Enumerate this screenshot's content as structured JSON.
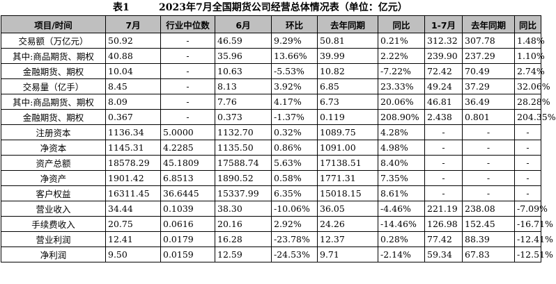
{
  "caption": {
    "label": "表1",
    "title": "2023年7月全国期货公司经营总体情况表（单位：亿元）"
  },
  "headers": [
    "项目/时间",
    "7月",
    "行业中位数",
    "6月",
    "环比",
    "去年同期",
    "同比",
    "1-7月",
    "去年同期",
    "同比"
  ],
  "rows": [
    [
      "交易额（万亿元）",
      "50.92",
      "-",
      "46.59",
      "9.29%",
      "50.81",
      "0.21%",
      "312.32",
      "307.78",
      "1.48%"
    ],
    [
      "其中:商品期货、期权",
      "40.88",
      "-",
      "35.96",
      "13.66%",
      "39.99",
      "2.22%",
      "239.90",
      "237.29",
      "1.10%"
    ],
    [
      "金融期货、期权",
      "10.04",
      "-",
      "10.63",
      "-5.53%",
      "10.82",
      "-7.22%",
      "72.42",
      "70.49",
      "2.74%"
    ],
    [
      "交易量（亿手）",
      "8.45",
      "-",
      "8.13",
      "3.92%",
      "6.85",
      "23.33%",
      "49.24",
      "37.29",
      "32.06%"
    ],
    [
      "其中:商品期货、期权",
      "8.09",
      "-",
      "7.76",
      "4.17%",
      "6.73",
      "20.06%",
      "46.81",
      "36.49",
      "28.28%"
    ],
    [
      "金融期货、期权",
      "0.367",
      "-",
      "0.373",
      "-1.37%",
      "0.119",
      "208.90%",
      "2.438",
      "0.801",
      "204.35%"
    ],
    [
      "注册资本",
      "1136.34",
      "5.0000",
      "1132.70",
      "0.32%",
      "1089.75",
      "4.28%",
      "-",
      "-",
      "-"
    ],
    [
      "净资本",
      "1145.31",
      "4.2285",
      "1135.50",
      "0.86%",
      "1091.00",
      "4.98%",
      "-",
      "-",
      "-"
    ],
    [
      "资产总额",
      "18578.29",
      "45.1809",
      "17588.74",
      "5.63%",
      "17138.51",
      "8.40%",
      "-",
      "-",
      "-"
    ],
    [
      "净资产",
      "1901.42",
      "6.8513",
      "1890.52",
      "0.58%",
      "1771.31",
      "7.35%",
      "-",
      "-",
      "-"
    ],
    [
      "客户权益",
      "16311.45",
      "36.6445",
      "15337.99",
      "6.35%",
      "15018.15",
      "8.61%",
      "-",
      "-",
      "-"
    ],
    [
      "营业收入",
      "34.44",
      "0.1039",
      "38.30",
      "-10.06%",
      "36.05",
      "-4.46%",
      "221.19",
      "238.08",
      "-7.09%"
    ],
    [
      "手续费收入",
      "20.75",
      "0.0616",
      "20.16",
      "2.92%",
      "24.26",
      "-14.46%",
      "126.98",
      "152.45",
      "-16.71%"
    ],
    [
      "营业利润",
      "12.41",
      "0.0179",
      "16.28",
      "-23.78%",
      "12.37",
      "0.28%",
      "77.42",
      "88.39",
      "-12.41%"
    ],
    [
      "净利润",
      "9.50",
      "0.0159",
      "12.59",
      "-24.53%",
      "9.71",
      "-2.14%",
      "59.34",
      "67.83",
      "-12.51%"
    ]
  ]
}
